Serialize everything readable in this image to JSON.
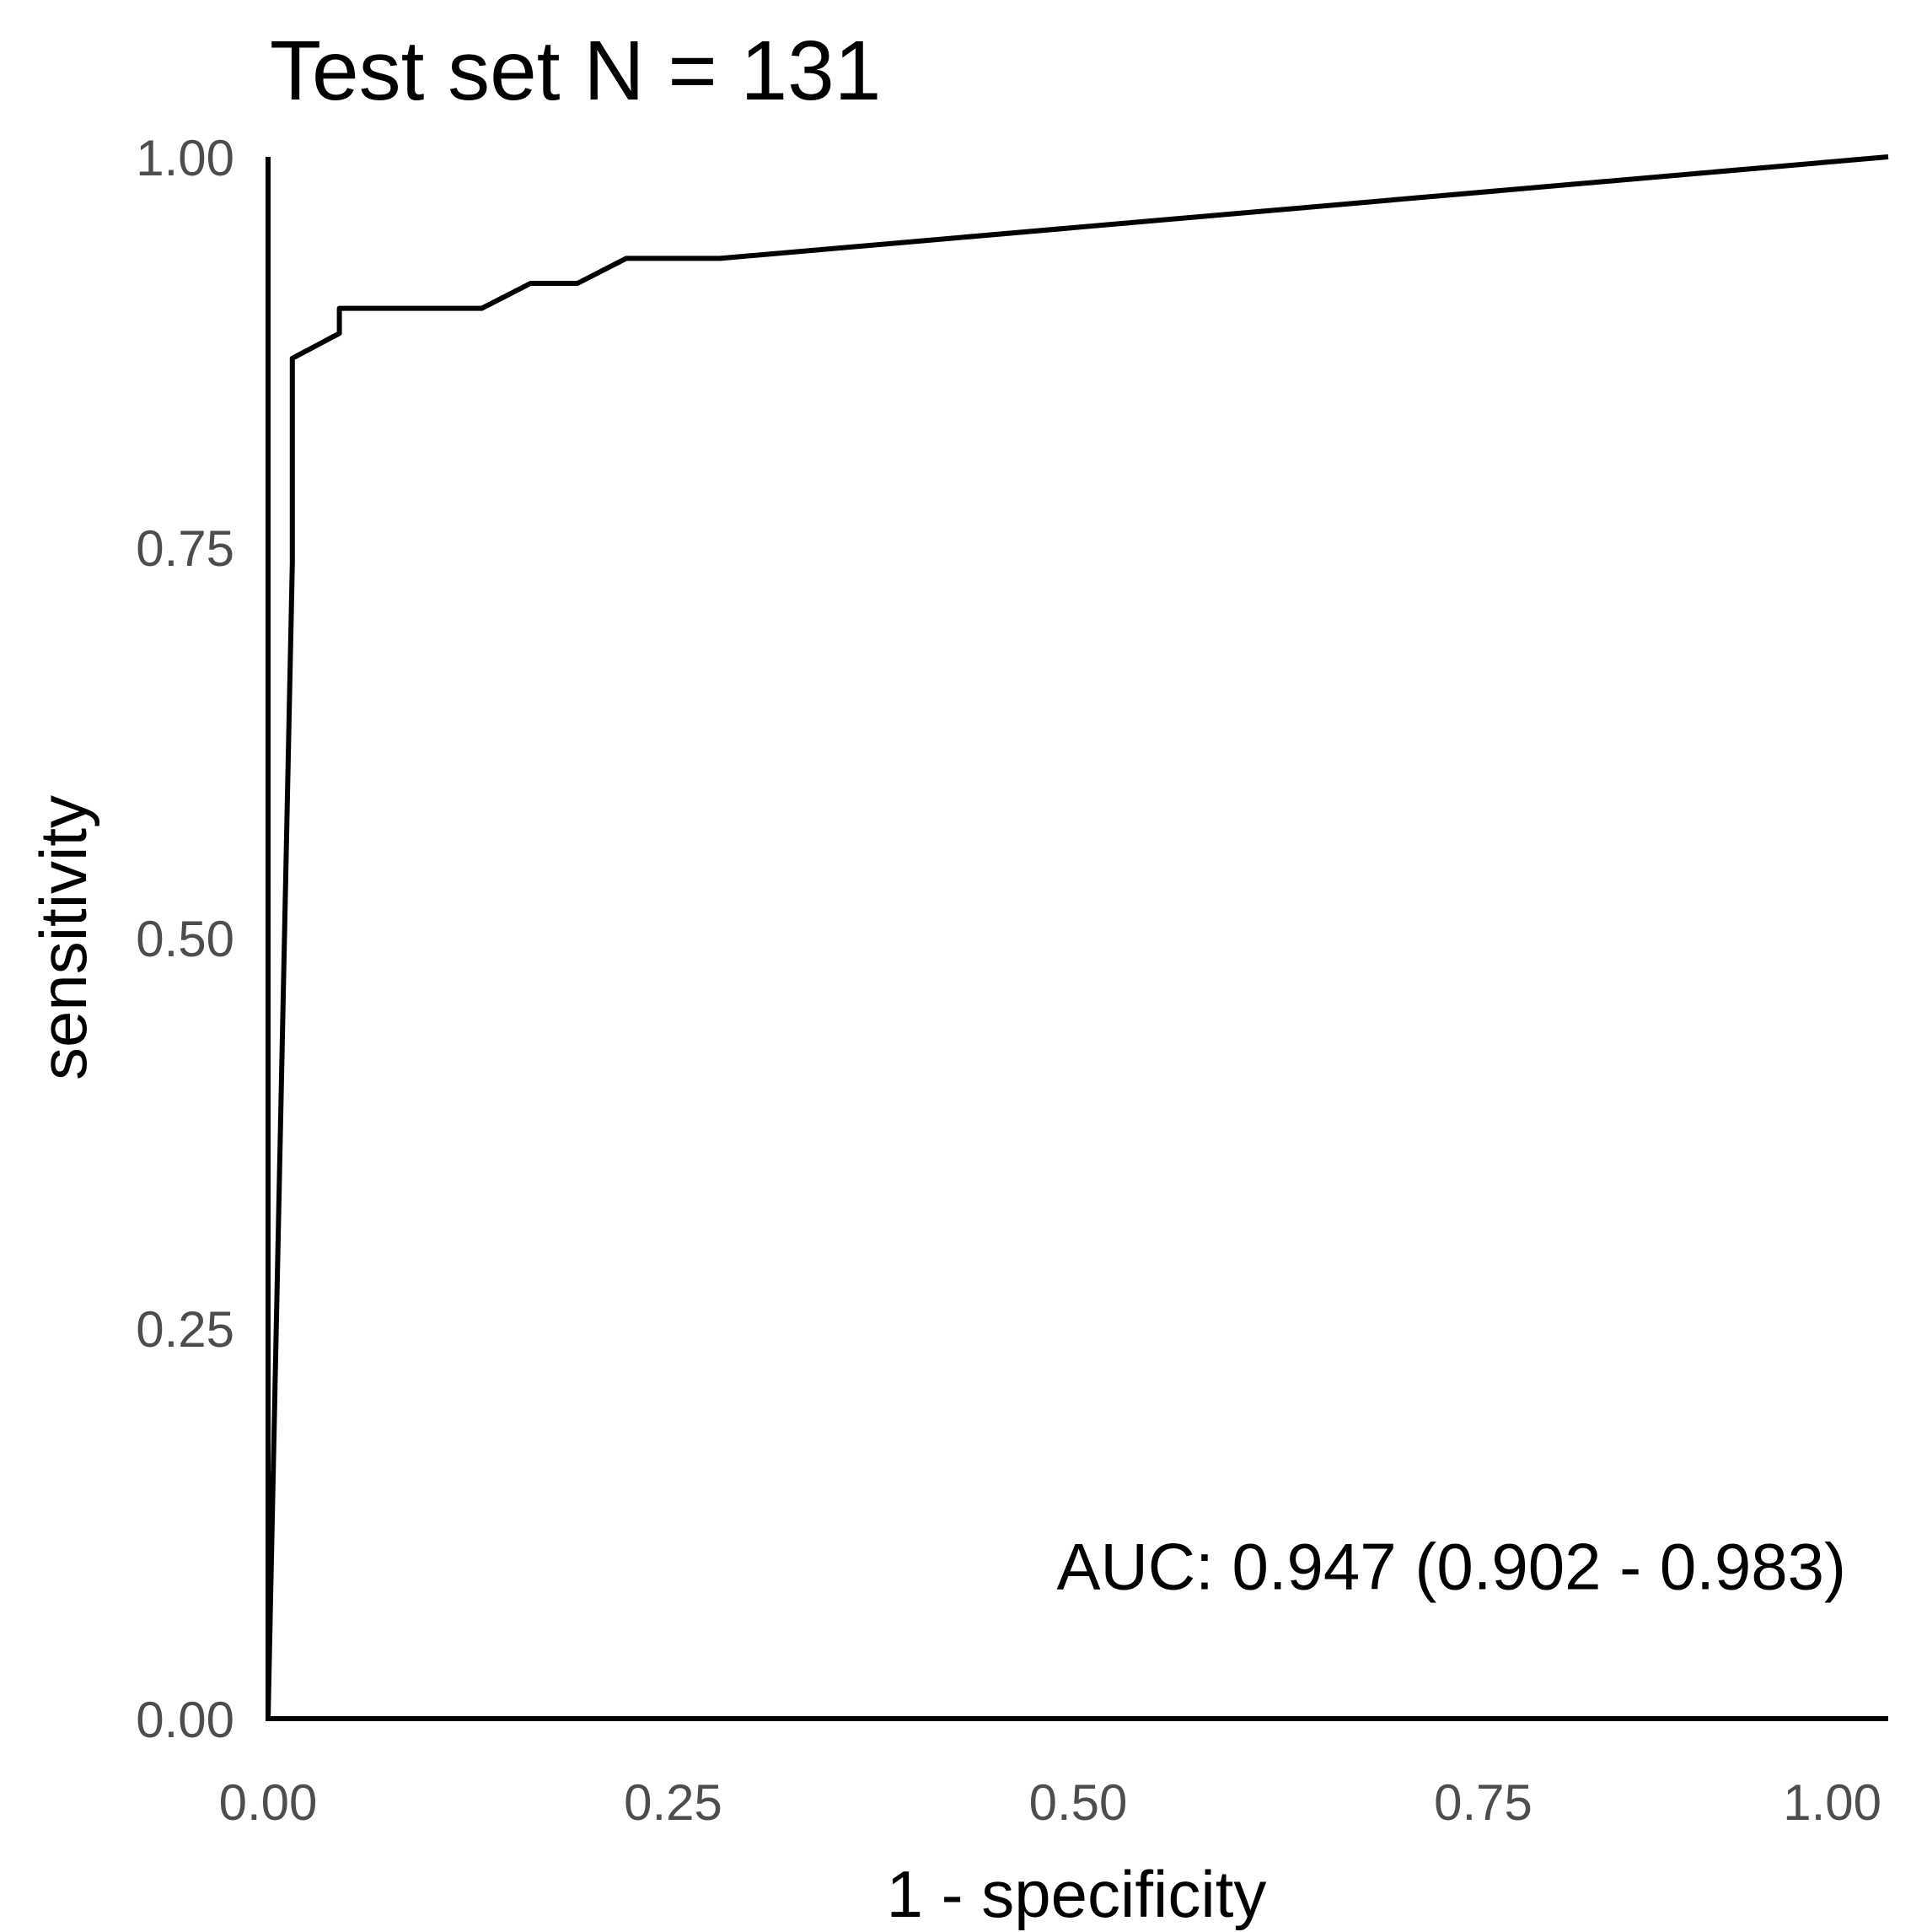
{
  "colors": {
    "background": "#ffffff",
    "line": "#000000",
    "axis": "#000000",
    "tick_label": "#4d4d4d",
    "text": "#000000"
  },
  "chart_data": {
    "type": "line",
    "title": "Test set N = 131",
    "xlabel": "1 - specificity",
    "ylabel": "sensitivity",
    "xlim": [
      0,
      1
    ],
    "ylim": [
      0,
      1
    ],
    "x_ticks": [
      "0.00",
      "0.25",
      "0.50",
      "0.75",
      "1.00"
    ],
    "y_ticks": [
      "0.00",
      "0.25",
      "0.50",
      "0.75",
      "1.00"
    ],
    "grid": false,
    "legend": "none",
    "annotation": "AUC: 0.947 (0.902 - 0.983)",
    "series": [
      {
        "x": [
          0.0,
          0.0,
          0.0,
          0.015,
          0.015,
          0.044,
          0.044,
          0.132,
          0.162,
          0.191,
          0.221,
          0.279,
          1.0
        ],
        "y": [
          0.0,
          0.704,
          0.0,
          0.74,
          0.871,
          0.887,
          0.903,
          0.903,
          0.919,
          0.919,
          0.935,
          0.935,
          1.0
        ]
      }
    ]
  }
}
